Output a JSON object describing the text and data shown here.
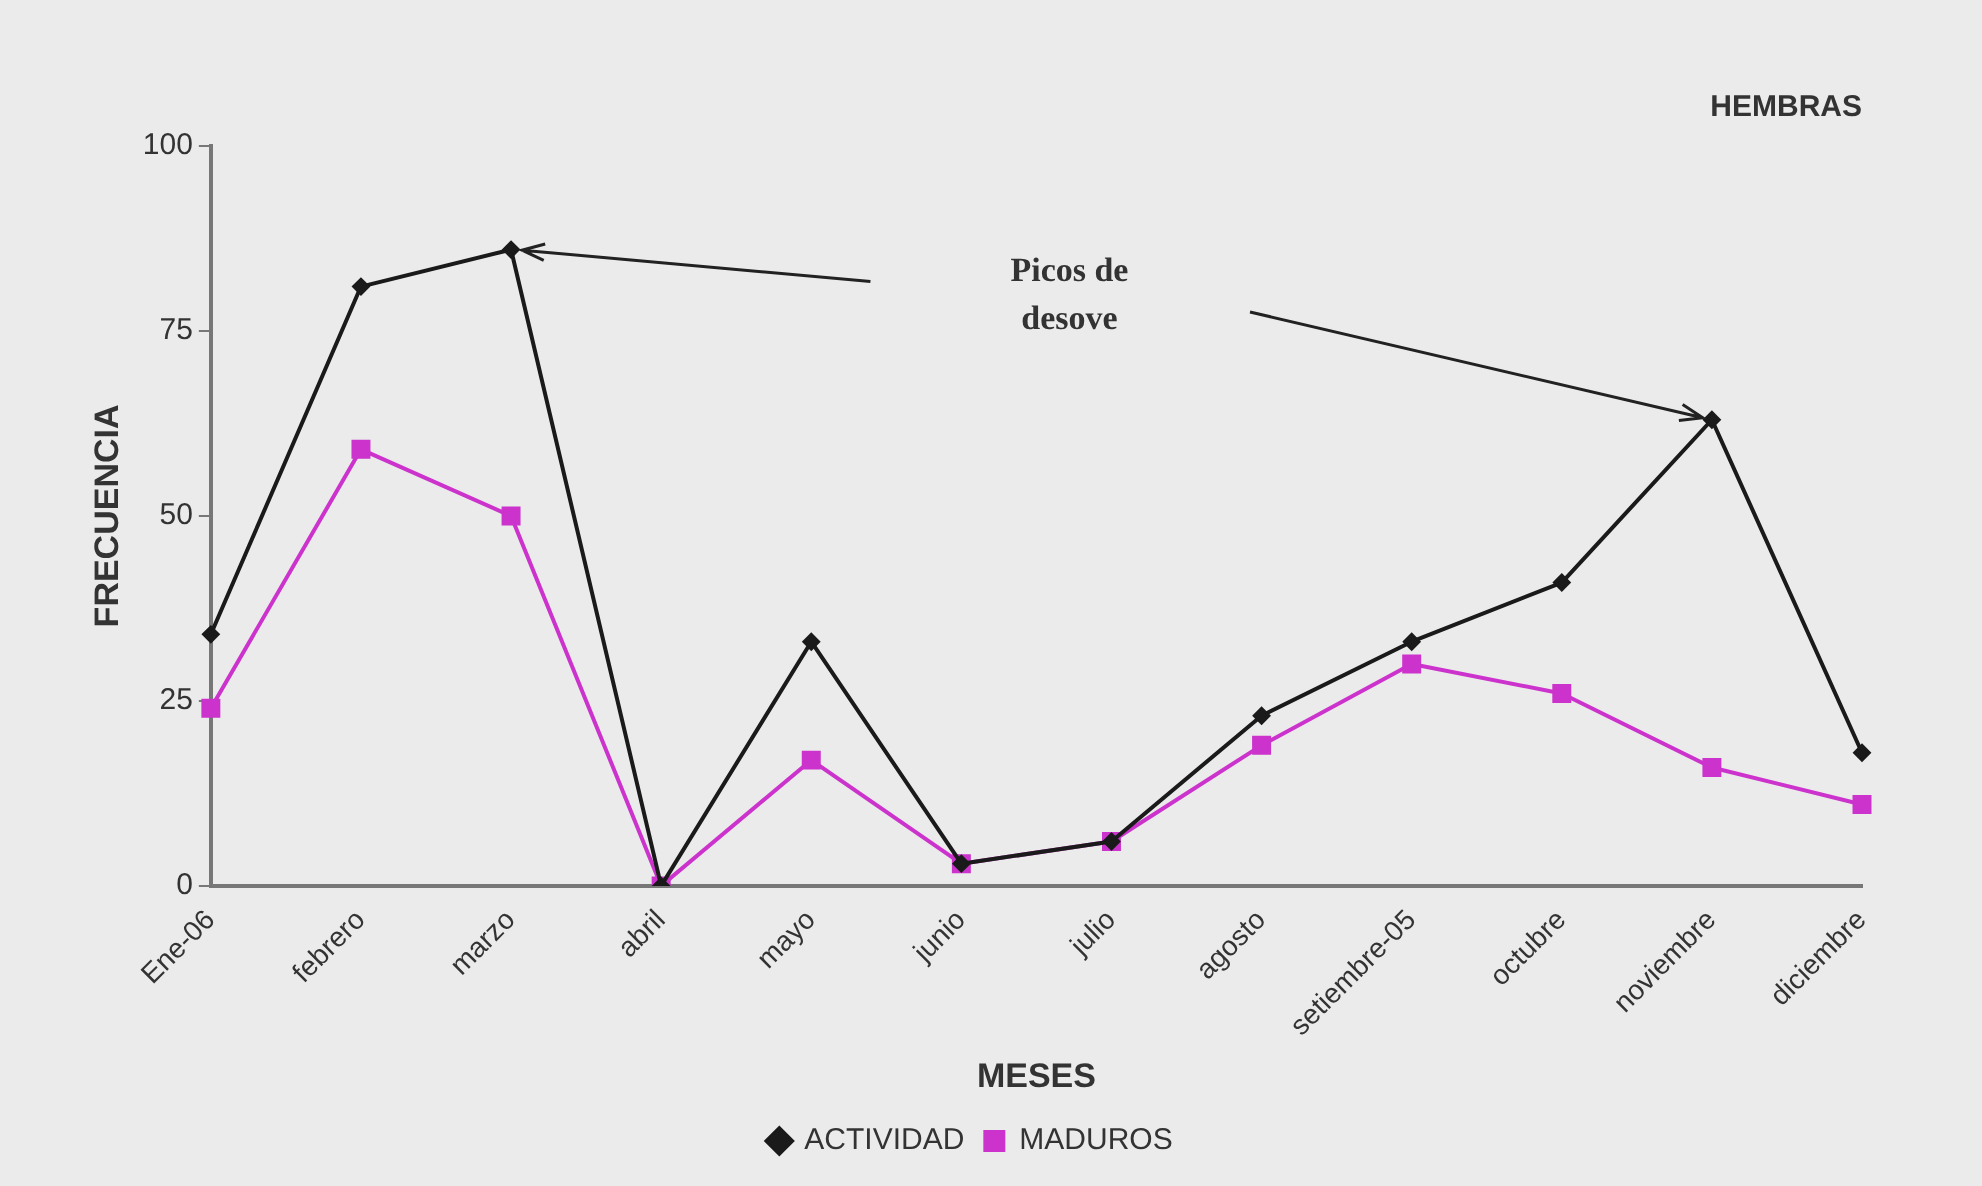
{
  "chart_data": {
    "type": "line",
    "title": "HEMBRAS",
    "xlabel": "MESES",
    "ylabel": "FRECUENCIA",
    "categories": [
      "Ene-06",
      "febrero",
      "marzo",
      "abril",
      "mayo",
      "junio",
      "julio",
      "agosto",
      "setiembre-05",
      "octubre",
      "noviembre",
      "diciembre"
    ],
    "series": [
      {
        "name": "ACTIVIDAD",
        "color": "#1a1a1a",
        "marker": "diamond",
        "values": [
          34,
          81,
          86,
          0,
          33,
          3,
          6,
          23,
          33,
          41,
          63,
          18
        ]
      },
      {
        "name": "MADUROS",
        "color": "#cc33cc",
        "marker": "square",
        "values": [
          24,
          59,
          50,
          0,
          17,
          3,
          6,
          19,
          30,
          26,
          16,
          11
        ]
      }
    ],
    "ylim": [
      0,
      100
    ],
    "yticks": [
      0,
      25,
      50,
      75,
      100
    ],
    "grid": false,
    "legend": "bottom",
    "annotations": [
      "Picos de desove"
    ]
  }
}
